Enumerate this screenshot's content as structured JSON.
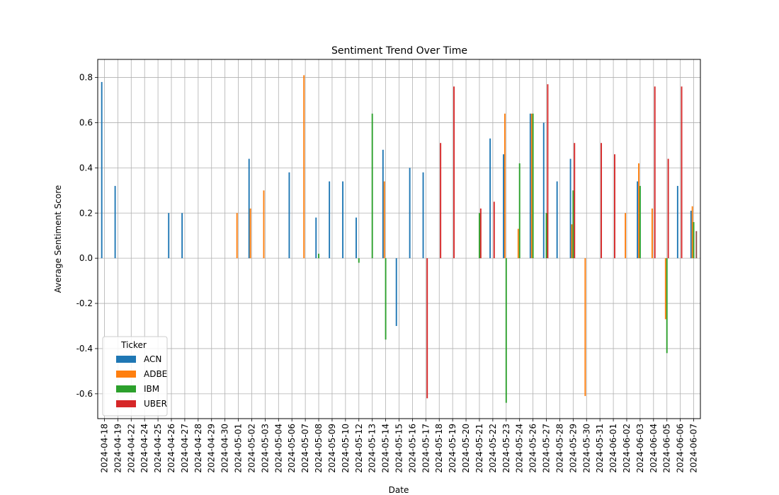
{
  "chart_data": {
    "type": "bar",
    "title": "Sentiment Trend Over Time",
    "xlabel": "Date",
    "ylabel": "Average Sentiment Score",
    "ylim": [
      -0.71,
      0.88
    ],
    "yticks": [
      -0.6,
      -0.4,
      -0.2,
      0.0,
      0.2,
      0.4,
      0.6,
      0.8
    ],
    "grid": true,
    "legend": {
      "title": "Ticker",
      "placement": "lower-left"
    },
    "categories": [
      "2024-04-18",
      "2024-04-19",
      "2024-04-22",
      "2024-04-24",
      "2024-04-25",
      "2024-04-26",
      "2024-04-27",
      "2024-04-28",
      "2024-04-29",
      "2024-04-30",
      "2024-05-01",
      "2024-05-02",
      "2024-05-03",
      "2024-05-04",
      "2024-05-06",
      "2024-05-07",
      "2024-05-08",
      "2024-05-09",
      "2024-05-10",
      "2024-05-12",
      "2024-05-13",
      "2024-05-14",
      "2024-05-15",
      "2024-05-16",
      "2024-05-17",
      "2024-05-18",
      "2024-05-19",
      "2024-05-20",
      "2024-05-21",
      "2024-05-22",
      "2024-05-23",
      "2024-05-24",
      "2024-05-26",
      "2024-05-27",
      "2024-05-28",
      "2024-05-29",
      "2024-05-30",
      "2024-05-31",
      "2024-06-01",
      "2024-06-02",
      "2024-06-03",
      "2024-06-04",
      "2024-06-05",
      "2024-06-06",
      "2024-06-07"
    ],
    "series": [
      {
        "name": "ACN",
        "color": "#1f77b4",
        "values": [
          0.78,
          0.32,
          null,
          null,
          null,
          0.2,
          0.2,
          null,
          null,
          null,
          null,
          0.44,
          null,
          null,
          0.38,
          null,
          0.18,
          0.34,
          0.34,
          0.18,
          null,
          0.48,
          -0.3,
          0.4,
          0.38,
          null,
          null,
          null,
          null,
          0.53,
          0.46,
          null,
          0.64,
          0.6,
          0.34,
          0.44,
          null,
          null,
          null,
          null,
          0.34,
          null,
          null,
          0.32,
          0.21
        ]
      },
      {
        "name": "ADBE",
        "color": "#ff7f0e",
        "values": [
          null,
          null,
          null,
          null,
          null,
          null,
          null,
          null,
          null,
          null,
          0.2,
          0.22,
          0.3,
          null,
          null,
          0.81,
          null,
          null,
          null,
          null,
          null,
          0.34,
          null,
          null,
          null,
          null,
          null,
          null,
          null,
          null,
          0.64,
          0.13,
          0.64,
          null,
          null,
          0.15,
          -0.61,
          null,
          null,
          0.2,
          0.42,
          0.22,
          -0.27,
          null,
          0.23
        ]
      },
      {
        "name": "IBM",
        "color": "#2ca02c",
        "values": [
          null,
          null,
          null,
          null,
          null,
          null,
          null,
          null,
          null,
          null,
          null,
          null,
          null,
          null,
          null,
          null,
          0.02,
          null,
          null,
          -0.02,
          0.64,
          -0.36,
          null,
          null,
          null,
          null,
          null,
          null,
          0.2,
          null,
          -0.64,
          0.42,
          0.64,
          0.2,
          null,
          0.3,
          null,
          null,
          null,
          null,
          0.32,
          null,
          -0.42,
          null,
          0.16
        ]
      },
      {
        "name": "UBER",
        "color": "#d62728",
        "values": [
          null,
          null,
          null,
          null,
          null,
          null,
          null,
          null,
          null,
          null,
          null,
          null,
          null,
          null,
          null,
          null,
          null,
          null,
          null,
          null,
          null,
          null,
          null,
          null,
          -0.62,
          0.51,
          0.76,
          null,
          0.22,
          0.25,
          null,
          null,
          null,
          0.77,
          null,
          0.51,
          null,
          0.51,
          0.46,
          null,
          null,
          0.76,
          0.44,
          0.76,
          null
        ]
      },
      {
        "name": "",
        "color": "#8c564b",
        "values": [
          null,
          null,
          null,
          null,
          null,
          null,
          null,
          null,
          null,
          null,
          null,
          null,
          null,
          null,
          null,
          null,
          null,
          null,
          null,
          null,
          null,
          null,
          null,
          null,
          null,
          null,
          null,
          null,
          null,
          null,
          null,
          null,
          null,
          null,
          null,
          null,
          null,
          null,
          null,
          null,
          null,
          null,
          null,
          null,
          0.12
        ]
      }
    ]
  }
}
